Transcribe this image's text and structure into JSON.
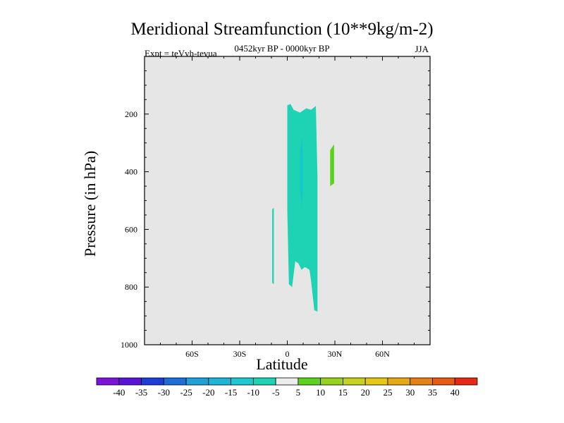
{
  "chart_data": {
    "type": "heatmap",
    "title": "Meridional Streamfunction (10**9kg/m-2)",
    "subtitle_left": "Expt = teVvh-tevua",
    "subtitle_center": "0452kyr BP - 0000kyr BP",
    "subtitle_right": "JJA",
    "xlabel": "Latitude",
    "ylabel": "Pressure (in hPa)",
    "x_range": [
      -90,
      90
    ],
    "y_range": [
      0,
      1000
    ],
    "y_inverted": true,
    "x_ticks": [
      {
        "value": -60,
        "label": "60S"
      },
      {
        "value": -30,
        "label": "30S"
      },
      {
        "value": 0,
        "label": "0"
      },
      {
        "value": 30,
        "label": "30N"
      },
      {
        "value": 60,
        "label": "60N"
      }
    ],
    "y_ticks": [
      {
        "value": 200,
        "label": "200"
      },
      {
        "value": 400,
        "label": "400"
      },
      {
        "value": 600,
        "label": "600"
      },
      {
        "value": 800,
        "label": "800"
      },
      {
        "value": 1000,
        "label": "1000"
      }
    ],
    "background_color": "#e6e6e6",
    "regions": [
      {
        "name": "negative-band-main",
        "color": "#1ed2b4",
        "level": -10,
        "points": [
          [
            0,
            170
          ],
          [
            2,
            165
          ],
          [
            4,
            185
          ],
          [
            8,
            195
          ],
          [
            12,
            180
          ],
          [
            15,
            185
          ],
          [
            18,
            172
          ],
          [
            19,
            420
          ],
          [
            19,
            800
          ],
          [
            19,
            885
          ],
          [
            17,
            880
          ],
          [
            15,
            780
          ],
          [
            14,
            740
          ],
          [
            11,
            730
          ],
          [
            9,
            740
          ],
          [
            7,
            718
          ],
          [
            5,
            710
          ],
          [
            3,
            800
          ],
          [
            1,
            790
          ],
          [
            0,
            530
          ]
        ]
      },
      {
        "name": "negative-core",
        "color": "#14c8c8",
        "level": -15,
        "points": [
          [
            8,
            340
          ],
          [
            9,
            280
          ],
          [
            10,
            340
          ],
          [
            10,
            460
          ],
          [
            9,
            520
          ],
          [
            8,
            460
          ]
        ]
      },
      {
        "name": "negative-streak",
        "color": "#1ed2b4",
        "level": -10,
        "points": [
          [
            -9.5,
            530
          ],
          [
            -8.5,
            525
          ],
          [
            -8.5,
            790
          ],
          [
            -9.5,
            785
          ]
        ]
      },
      {
        "name": "positive-patch",
        "color": "#5ad21e",
        "level": 10,
        "points": [
          [
            27,
            325
          ],
          [
            29.5,
            305
          ],
          [
            29.5,
            440
          ],
          [
            27,
            450
          ]
        ]
      }
    ],
    "colorbar": {
      "colors": [
        "#7b14d8",
        "#5a14d8",
        "#1e3cd8",
        "#1e6ed8",
        "#1ea0d8",
        "#1eb4d8",
        "#1ec8d2",
        "#1ed2b4",
        "#ececec",
        "#5ad21e",
        "#96d21e",
        "#c8d21e",
        "#e6c814",
        "#e6aa14",
        "#e68214",
        "#e65a14",
        "#e62814"
      ],
      "labels": [
        "-40",
        "-35",
        "-30",
        "-25",
        "-20",
        "-15",
        "-10",
        "-5",
        "5",
        "10",
        "15",
        "20",
        "25",
        "30",
        "35",
        "40"
      ]
    }
  }
}
